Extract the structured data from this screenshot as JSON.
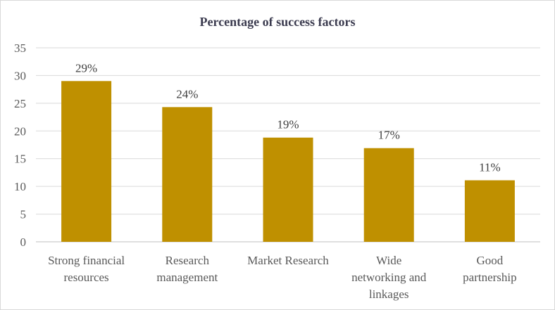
{
  "chart_data": {
    "type": "bar",
    "title": "Percentage of success factors",
    "categories": [
      [
        "Strong financial",
        "resources"
      ],
      [
        "Research",
        "management"
      ],
      [
        "Market Research"
      ],
      [
        "Wide",
        "networking and",
        "linkages"
      ],
      [
        "Good",
        "partnership"
      ]
    ],
    "values": [
      29,
      24.3,
      18.8,
      16.9,
      11.1
    ],
    "data_labels": [
      "29%",
      "24%",
      "19%",
      "17%",
      "11%"
    ],
    "ylim": [
      0,
      35
    ],
    "yticks": [
      0,
      5,
      10,
      15,
      20,
      25,
      30,
      35
    ],
    "grid": true,
    "bar_color": "#bf9000"
  }
}
